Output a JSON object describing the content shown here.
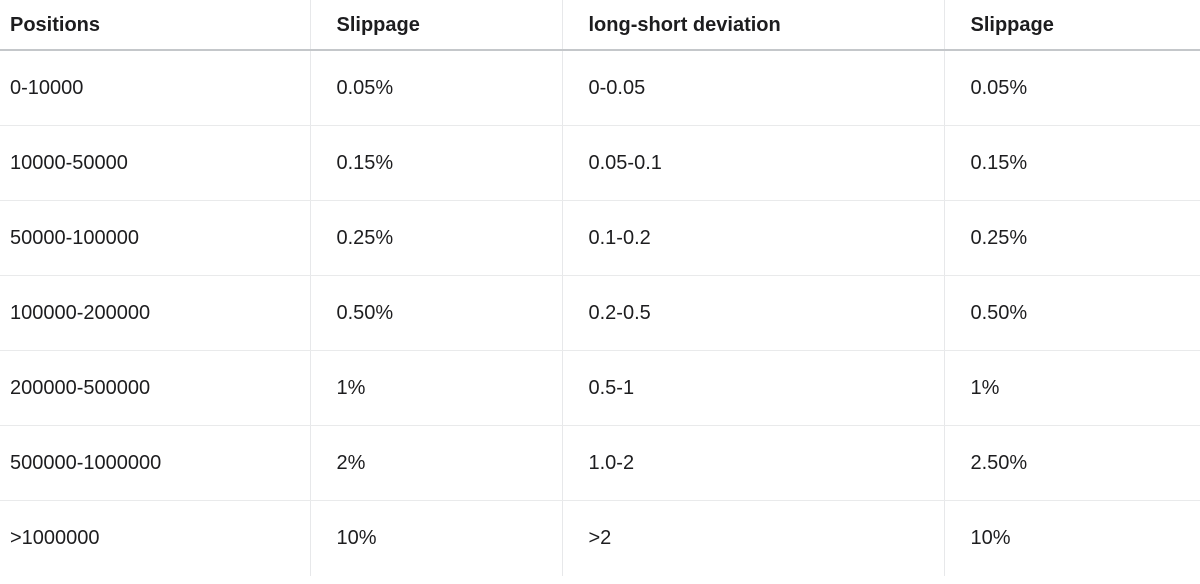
{
  "table": {
    "columns": [
      {
        "label": "Positions"
      },
      {
        "label": "Slippage"
      },
      {
        "label": "long-short deviation"
      },
      {
        "label": "Slippage"
      }
    ],
    "rows": [
      [
        "0-10000",
        "0.05%",
        "0-0.05",
        "0.05%"
      ],
      [
        "10000-50000",
        "0.15%",
        "0.05-0.1",
        "0.15%"
      ],
      [
        "50000-100000",
        "0.25%",
        "0.1-0.2",
        "0.25%"
      ],
      [
        "100000-200000",
        "0.50%",
        "0.2-0.5",
        "0.50%"
      ],
      [
        "200000-500000",
        "1%",
        "0.5-1",
        "1%"
      ],
      [
        "500000-1000000",
        "2%",
        "1.0-2",
        "2.50%"
      ],
      [
        ">1000000",
        "10%",
        ">2",
        "10%"
      ]
    ],
    "colors": {
      "text": "#1d1d1f",
      "header_rule": "#c4c7ca",
      "grid_line": "#e9eaeb",
      "background": "#ffffff"
    }
  }
}
